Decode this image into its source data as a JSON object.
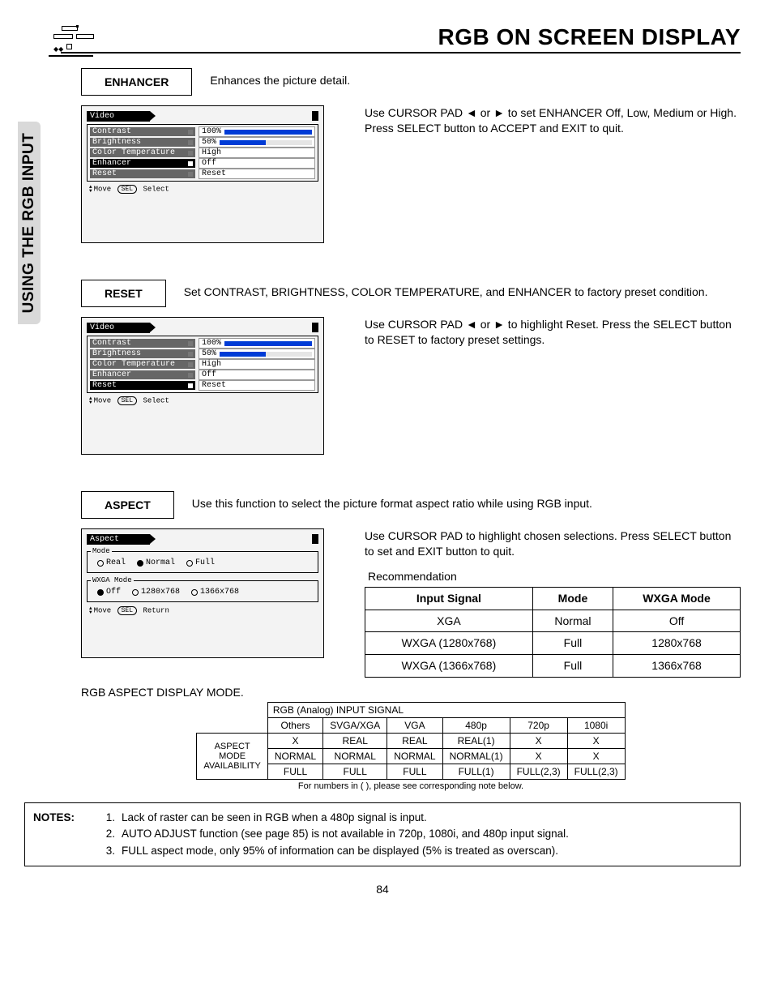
{
  "page_title": "RGB ON SCREEN DISPLAY",
  "side_tab": "USING THE RGB INPUT",
  "enhancer": {
    "label": "ENHANCER",
    "desc": "Enhances the picture detail.",
    "right_text": "Use CURSOR PAD ◄ or ► to set ENHANCER Off, Low, Medium or High.  Press SELECT button to ACCEPT and EXIT to quit."
  },
  "reset": {
    "label": "RESET",
    "desc": "Set CONTRAST, BRIGHTNESS, COLOR TEMPERATURE, and ENHANCER to factory preset condition.",
    "right_text": "Use CURSOR PAD ◄ or ► to highlight Reset. Press the SELECT button to RESET to factory preset settings."
  },
  "aspect": {
    "label": "ASPECT",
    "desc": "Use this function to select the picture format aspect ratio while using RGB input.",
    "right_text": "Use CURSOR PAD to highlight chosen selections.  Press SELECT button to set and EXIT button to quit."
  },
  "osd_video": {
    "title": "Video",
    "rows": [
      {
        "label": "Contrast",
        "value": "100%",
        "bar_pct": 100,
        "bar": true
      },
      {
        "label": "Brightness",
        "value": "50%",
        "bar_pct": 50,
        "bar": true
      },
      {
        "label": "Color Temperature",
        "value": "High",
        "bar": false
      },
      {
        "label": "Enhancer",
        "value": "Off",
        "bar": false
      },
      {
        "label": "Reset",
        "value": "Reset",
        "bar": false
      }
    ],
    "foot_move": "Move",
    "foot_sel_btn": "SEL",
    "foot_select": "Select"
  },
  "osd_aspect": {
    "title": "Aspect",
    "mode_legend": "Mode",
    "mode_opts": [
      {
        "label": "Real",
        "sel": false
      },
      {
        "label": "Normal",
        "sel": true
      },
      {
        "label": "Full",
        "sel": false
      }
    ],
    "wxga_legend": "WXGA Mode",
    "wxga_opts": [
      {
        "label": "Off",
        "sel": true
      },
      {
        "label": "1280x768",
        "sel": false
      },
      {
        "label": "1366x768",
        "sel": false
      }
    ],
    "foot_move": "Move",
    "foot_sel_btn": "SEL",
    "foot_return": "Return"
  },
  "recommendation": {
    "title": "Recommendation",
    "columns": [
      "Input Signal",
      "Mode",
      "WXGA Mode"
    ],
    "rows": [
      [
        "XGA",
        "Normal",
        "Off"
      ],
      [
        "WXGA (1280x768)",
        "Full",
        "1280x768"
      ],
      [
        "WXGA (1366x768)",
        "Full",
        "1366x768"
      ]
    ]
  },
  "aspect_mode_heading": "RGB ASPECT DISPLAY MODE.",
  "avail": {
    "signal_header": "RGB (Analog) INPUT SIGNAL",
    "cols": [
      "Others",
      "SVGA/XGA",
      "VGA",
      "480p",
      "720p",
      "1080i"
    ],
    "row_header": "ASPECT MODE AVAILABILITY",
    "rows": [
      [
        "X",
        "REAL",
        "REAL",
        "REAL(1)",
        "X",
        "X"
      ],
      [
        "NORMAL",
        "NORMAL",
        "NORMAL",
        "NORMAL(1)",
        "X",
        "X"
      ],
      [
        "FULL",
        "FULL",
        "FULL",
        "FULL(1)",
        "FULL(2,3)",
        "FULL(2,3)"
      ]
    ],
    "footnote": "For numbers in ( ), please see corresponding note below."
  },
  "notes": {
    "label": "NOTES:",
    "items": [
      "Lack of raster can be seen in RGB when a 480p signal is input.",
      "AUTO ADJUST function (see page 85) is not available in 720p, 1080i, and 480p input signal.",
      "FULL aspect mode, only 95% of information can be displayed (5% is treated as overscan)."
    ]
  },
  "page_number": "84",
  "colors": {
    "bar_fill": "#003cd6",
    "side_tab_bg": "#d9d9d9",
    "osd_bg": "#f3f3f3"
  }
}
